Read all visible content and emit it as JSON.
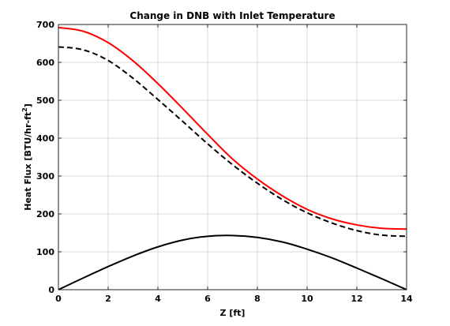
{
  "chart_data": {
    "type": "line",
    "title": "Change in DNB with Inlet Temperature",
    "xlabel": "Z [ft]",
    "ylabel_main": "Heat Flux [BTU/hr-ft",
    "ylabel_sup": "2",
    "ylabel_end": "]",
    "xlim": [
      0,
      14
    ],
    "ylim": [
      0,
      700
    ],
    "xticks": [
      0,
      2,
      4,
      6,
      8,
      10,
      12,
      14
    ],
    "yticks": [
      0,
      100,
      200,
      300,
      400,
      500,
      600,
      700
    ],
    "grid": true,
    "x": [
      0,
      1,
      2,
      3,
      4,
      5,
      6,
      7,
      8,
      9,
      10,
      11,
      12,
      13,
      14
    ],
    "series": [
      {
        "color": "#ff0000",
        "style": "solid",
        "values": [
          692,
          682,
          652,
          604,
          544,
          478,
          410,
          345,
          292,
          248,
          212,
          187,
          171,
          162,
          160
        ]
      },
      {
        "color": "#000000",
        "style": "dashed",
        "values": [
          641,
          633,
          605,
          558,
          502,
          444,
          385,
          330,
          281,
          238,
          203,
          176,
          156,
          144,
          141
        ]
      },
      {
        "color": "#000000",
        "style": "solid",
        "values": [
          0,
          31,
          61,
          89,
          113,
          131,
          141,
          143,
          138,
          126,
          107,
          84,
          57,
          29,
          0
        ]
      }
    ]
  }
}
